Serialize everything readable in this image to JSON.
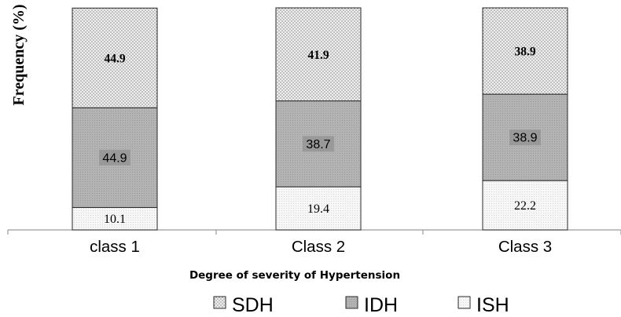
{
  "chart_data": {
    "type": "bar",
    "stacked": true,
    "normalized": true,
    "title": "",
    "xlabel": "Degree of severity of Hypertension",
    "ylabel": "Frequency (%)",
    "ylim": [
      0,
      100
    ],
    "grid": false,
    "legend_position": "bottom",
    "categories": [
      "class 1",
      "Class 2",
      "Class 3"
    ],
    "series": [
      {
        "name": "ISH",
        "values": [
          10.1,
          19.4,
          22.2
        ],
        "labels": [
          "10.1",
          "19.4",
          "22.2"
        ],
        "color": "#f2f2f2"
      },
      {
        "name": "IDH",
        "values": [
          44.9,
          38.7,
          38.9
        ],
        "labels": [
          "44.9",
          "38.7",
          "38.9"
        ],
        "color": "#aaaaaa"
      },
      {
        "name": "SDH",
        "values": [
          44.9,
          41.9,
          38.9
        ],
        "labels": [
          "44.9",
          "41.9",
          "38.9"
        ],
        "color": "#d6d6d6"
      }
    ],
    "legend": [
      "SDH",
      "IDH",
      "ISH"
    ]
  }
}
